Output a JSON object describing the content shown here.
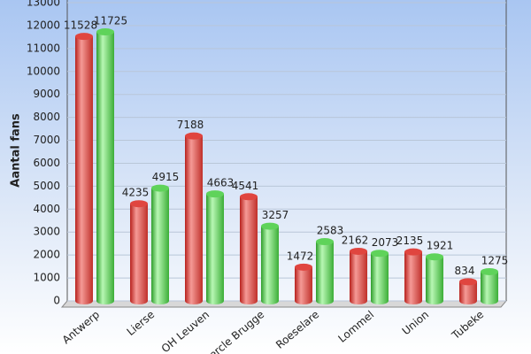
{
  "chart_data": {
    "type": "bar",
    "y_label": "Aantal fans",
    "categories": [
      "Antwerp",
      "Lierse",
      "OH Leuven",
      "Cercle Brugge",
      "Roeselare",
      "Lommel",
      "Union",
      "Tubeke"
    ],
    "series": [
      {
        "color": "#e0453f",
        "values": [
          11528,
          4235,
          7188,
          4541,
          1472,
          2162,
          2135,
          834
        ]
      },
      {
        "color": "#5fd35a",
        "values": [
          11725,
          4915,
          4663,
          3257,
          2583,
          2073,
          1921,
          1275
        ]
      }
    ],
    "ylim": [
      0,
      13000
    ],
    "yticks": [
      0,
      1000,
      2000,
      3000,
      4000,
      5000,
      6000,
      7000,
      8000,
      9000,
      10000,
      11000,
      12000,
      13000
    ],
    "grid": true
  }
}
